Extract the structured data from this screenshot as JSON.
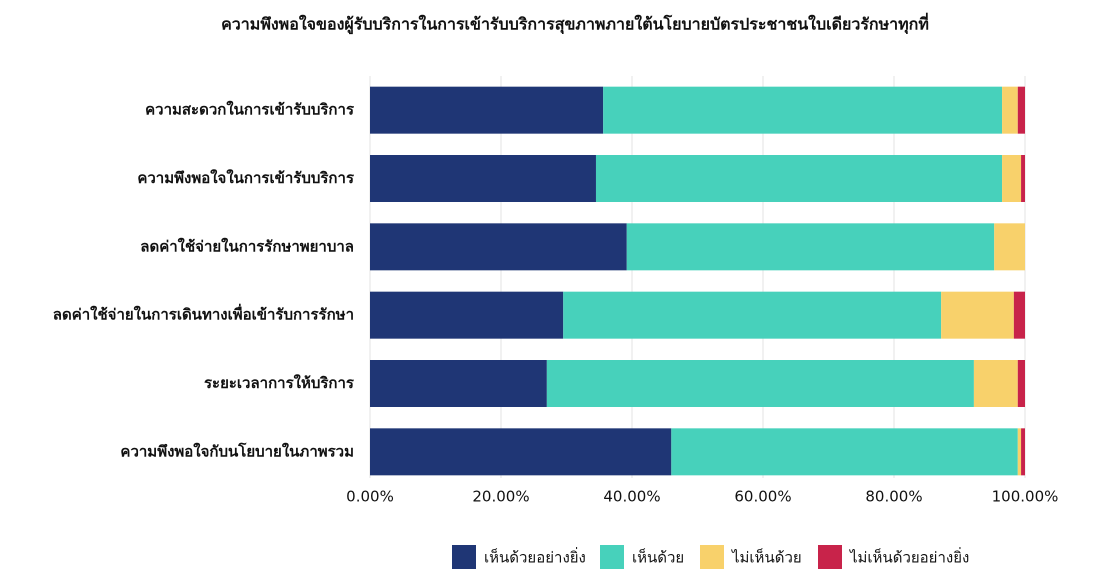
{
  "chart_data": {
    "type": "stacked_barh",
    "title": "ความพึงพอใจของผู้รับบริการในการเข้ารับบริการสุขภาพภายใต้นโยบายบัตรประชาชนใบเดียวรักษาทุกที่",
    "categories": [
      "ความสะดวกในการเข้ารับบริการ",
      "ความพึงพอใจในการเข้ารับบริการ",
      "ลดค่าใช้จ่ายในการรักษาพยาบาล",
      "ลดค่าใช้จ่ายในการเดินทางเพื่อเข้ารับการรักษา",
      "ระยะเวลาการให้บริการ",
      "ความพึงพอใจกับนโยบายในภาพรวม"
    ],
    "series": [
      {
        "name": "เห็นด้วยอย่างยิ่ง",
        "color": "#1f3675",
        "values": [
          35.6,
          34.5,
          39.2,
          29.5,
          27.0,
          46.0
        ]
      },
      {
        "name": "เห็นด้วย",
        "color": "#47d1bb",
        "values": [
          60.9,
          62.0,
          56.1,
          57.7,
          65.2,
          52.9
        ]
      },
      {
        "name": "ไม่เห็นด้วย",
        "color": "#f8d16b",
        "values": [
          2.4,
          2.9,
          4.7,
          11.1,
          6.7,
          0.5
        ]
      },
      {
        "name": "ไม่เห็นด้วยอย่างยิ่ง",
        "color": "#c8234a",
        "values": [
          1.1,
          0.6,
          0,
          1.7,
          1.1,
          0.6
        ]
      }
    ],
    "xlim": [
      0,
      100
    ],
    "xticks": [
      {
        "value": 0,
        "label": "0.00%"
      },
      {
        "value": 20,
        "label": "20.00%"
      },
      {
        "value": 40,
        "label": "40.00%"
      },
      {
        "value": 60,
        "label": "60.00%"
      },
      {
        "value": 80,
        "label": "80.00%"
      },
      {
        "value": 100,
        "label": "100.00%"
      }
    ],
    "grid": true,
    "legend": "bottom"
  }
}
